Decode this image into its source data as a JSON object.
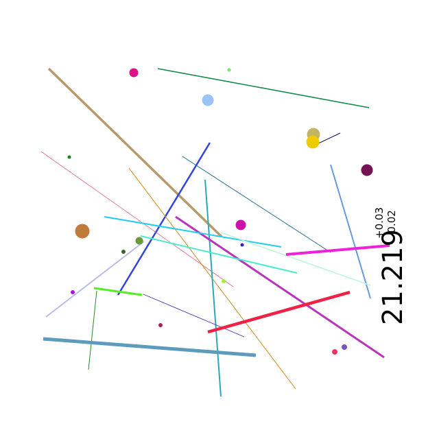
{
  "readout": {
    "value": "21.219",
    "tolerance_plus": "+0.03",
    "tolerance_minus": "-0.02"
  },
  "colors": {
    "background": "#ffffff",
    "text": "#000000"
  }
}
